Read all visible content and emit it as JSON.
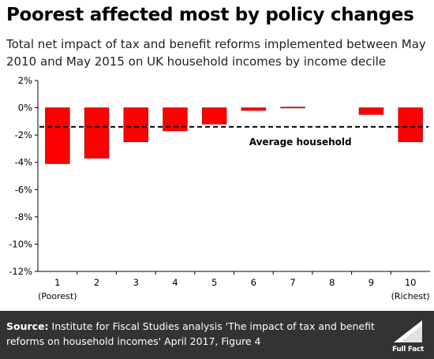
{
  "title": "Poorest affected most by policy changes",
  "subtitle": "Total net impact of tax and benefit reforms implemented between May 2010 and May 2015 on UK household incomes by income decile",
  "footer": {
    "source_label": "Source:",
    "source_text": " Institute for Fiscal Studies analysis 'The impact of tax and benefit reforms on household incomes' April 2017, Figure 4",
    "logo_text": "Full Fact"
  },
  "colors": {
    "bar": "#ff0000",
    "footer_bg": "#333333"
  },
  "chart_data": {
    "type": "bar",
    "categories": [
      "1",
      "2",
      "3",
      "4",
      "5",
      "6",
      "7",
      "8",
      "9",
      "10"
    ],
    "category_sublabels": [
      "(Poorest)",
      "",
      "",
      "",
      "",
      "",
      "",
      "",
      "",
      "(Richest)"
    ],
    "values": [
      -4.1,
      -3.7,
      -2.5,
      -1.7,
      -1.2,
      -0.2,
      0.05,
      0.0,
      -0.5,
      -2.5
    ],
    "ylim": [
      -12,
      2
    ],
    "yticks": [
      2,
      0,
      -2,
      -4,
      -6,
      -8,
      -10,
      -12
    ],
    "ytick_labels": [
      "2%",
      "0%",
      "-2%",
      "-4%",
      "-6%",
      "-8%",
      "-10%",
      "-12%"
    ],
    "reference_line": {
      "value": -1.4,
      "label": "Average household",
      "style": "dashed"
    },
    "grid": false,
    "legend": "none"
  }
}
